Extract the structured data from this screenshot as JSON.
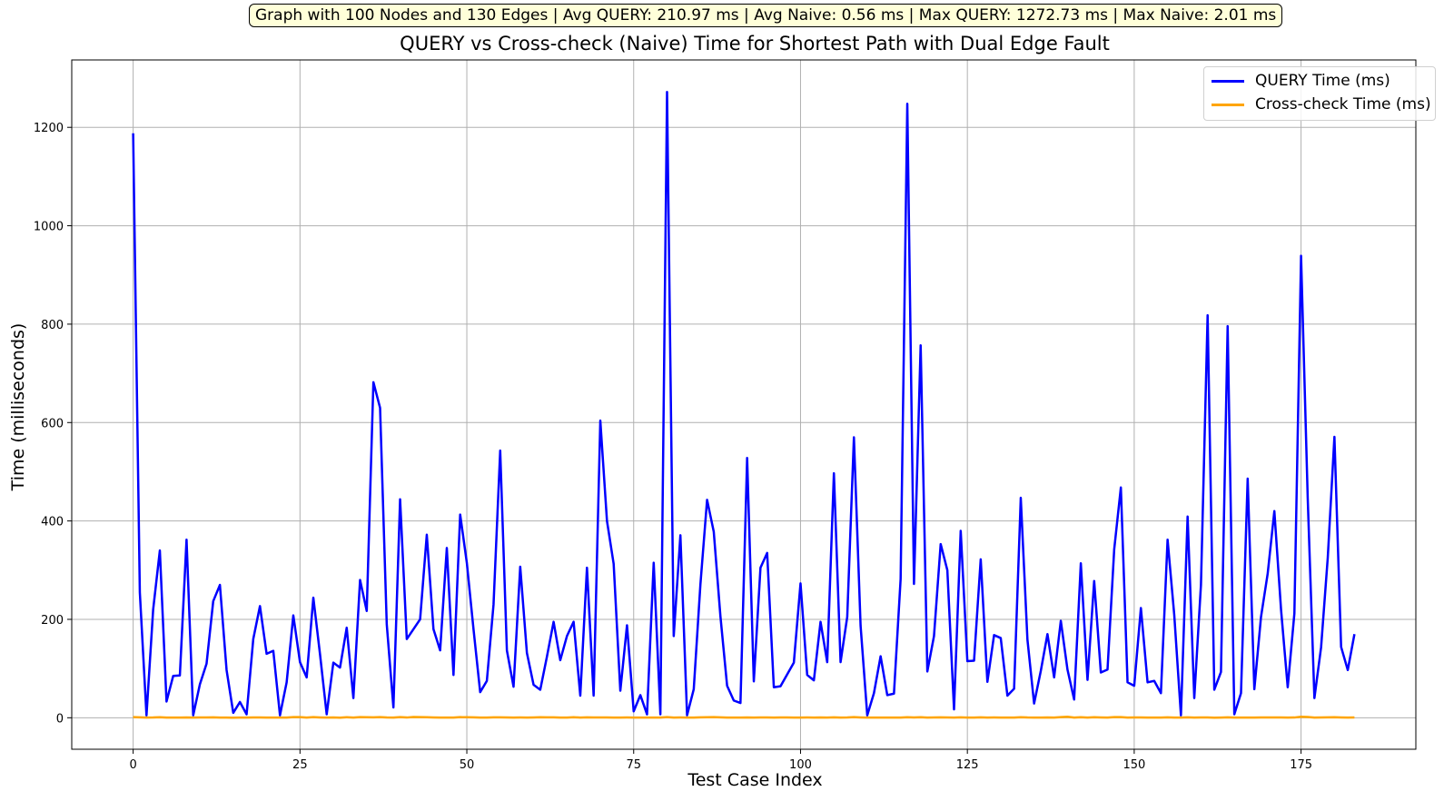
{
  "info_text": "Graph with 100 Nodes and 130 Edges | Avg QUERY: 210.97 ms | Avg Naive: 0.56 ms | Max QUERY: 1272.73 ms | Max Naive: 2.01 ms",
  "chart_data": {
    "type": "line",
    "title": "QUERY vs Cross-check (Naive) Time for Shortest Path with Dual Edge Fault",
    "xlabel": "Test Case Index",
    "ylabel": "Time (milliseconds)",
    "xlim": [
      -9.2,
      192.2
    ],
    "ylim": [
      -64,
      1337
    ],
    "xticks": [
      0,
      25,
      50,
      75,
      100,
      125,
      150,
      175
    ],
    "yticks": [
      0,
      200,
      400,
      600,
      800,
      1000,
      1200
    ],
    "grid": true,
    "legend_position": "top-right",
    "series": [
      {
        "name": "QUERY Time (ms)",
        "color": "#0000ff",
        "values": [
          1188,
          255,
          5,
          220,
          340,
          33,
          85,
          86,
          362,
          5,
          68,
          110,
          237,
          270,
          97,
          10,
          32,
          7,
          160,
          227,
          130,
          136,
          5,
          72,
          208,
          113,
          82,
          244,
          129,
          7,
          112,
          102,
          183,
          40,
          280,
          217,
          682,
          630,
          190,
          21,
          444,
          160,
          180,
          200,
          372,
          180,
          137,
          345,
          87,
          413,
          315,
          180,
          52,
          75,
          230,
          543,
          137,
          63,
          307,
          132,
          67,
          57,
          124,
          195,
          117,
          166,
          195,
          45,
          305,
          45,
          604,
          400,
          313,
          55,
          188,
          13,
          46,
          7,
          315,
          7,
          1272,
          166,
          371,
          5,
          58,
          271,
          443,
          378,
          206,
          65,
          35,
          30,
          528,
          74,
          305,
          335,
          62,
          64,
          88,
          112,
          273,
          87,
          76,
          195,
          113,
          497,
          113,
          205,
          570,
          187,
          5,
          50,
          125,
          46,
          49,
          282,
          1248,
          272,
          757,
          94,
          166,
          353,
          300,
          17,
          380,
          115,
          116,
          322,
          73,
          168,
          162,
          45,
          59,
          447,
          159,
          29,
          95,
          170,
          82,
          197,
          98,
          37,
          314,
          77,
          278,
          92,
          98,
          342,
          468,
          72,
          65,
          223,
          72,
          75,
          50,
          362,
          209,
          5,
          409,
          40,
          270,
          818,
          57,
          93,
          796,
          7,
          50,
          486,
          58,
          205,
          293,
          420,
          220,
          62,
          212,
          939,
          446,
          40,
          143,
          325,
          571,
          144,
          97,
          170
        ]
      },
      {
        "name": "Cross-check Time (ms)",
        "color": "#ffa500",
        "values": [
          1.2,
          0.9,
          0.4,
          0.5,
          1.0,
          0.4,
          0.4,
          0.3,
          0.5,
          0.3,
          0.6,
          0.7,
          0.8,
          0.4,
          0.3,
          0.2,
          0.3,
          0.3,
          0.6,
          0.6,
          0.3,
          0.4,
          0.3,
          0.3,
          1.4,
          1.2,
          0.3,
          1.2,
          0.7,
          0.3,
          0.5,
          0.2,
          1.1,
          0.3,
          1.2,
          1.0,
          0.8,
          1.3,
          0.5,
          0.3,
          1.2,
          0.5,
          1.6,
          1.3,
          1.0,
          0.6,
          0.4,
          0.4,
          0.3,
          1.2,
          1.0,
          0.9,
          0.3,
          0.4,
          0.9,
          0.8,
          0.5,
          0.3,
          0.5,
          0.4,
          0.6,
          1.0,
          0.9,
          0.8,
          0.4,
          0.3,
          1.1,
          0.3,
          0.8,
          0.7,
          0.6,
          0.5,
          0.4,
          0.3,
          0.5,
          0.4,
          0.3,
          0.3,
          0.4,
          0.3,
          1.4,
          0.4,
          0.5,
          0.3,
          0.4,
          0.9,
          1.1,
          1.4,
          0.9,
          0.4,
          0.3,
          0.3,
          0.7,
          0.3,
          0.5,
          0.5,
          0.3,
          0.6,
          0.5,
          0.4,
          0.3,
          0.6,
          0.3,
          0.7,
          0.3,
          0.8,
          0.4,
          0.5,
          1.2,
          0.6,
          0.3,
          0.3,
          0.4,
          0.3,
          0.3,
          0.4,
          1.0,
          0.5,
          1.1,
          0.4,
          0.5,
          0.8,
          0.7,
          0.3,
          0.9,
          0.4,
          0.4,
          0.8,
          0.3,
          0.5,
          0.4,
          0.3,
          0.4,
          1.1,
          0.5,
          0.3,
          0.4,
          0.6,
          0.4,
          1.3,
          2.0,
          0.3,
          1.1,
          0.4,
          1.0,
          0.5,
          0.3,
          1.3,
          1.2,
          0.4,
          0.5,
          0.6,
          0.4,
          0.3,
          0.3,
          0.9,
          0.4,
          0.3,
          0.8,
          0.3,
          0.5,
          0.7,
          0.2,
          0.4,
          0.9,
          0.3,
          0.3,
          0.4,
          0.3,
          0.5,
          0.6,
          0.7,
          0.5,
          0.3,
          0.5,
          2.0,
          1.6,
          0.4,
          0.5,
          0.8,
          1.0,
          0.7,
          0.4,
          0.6
        ]
      }
    ]
  }
}
